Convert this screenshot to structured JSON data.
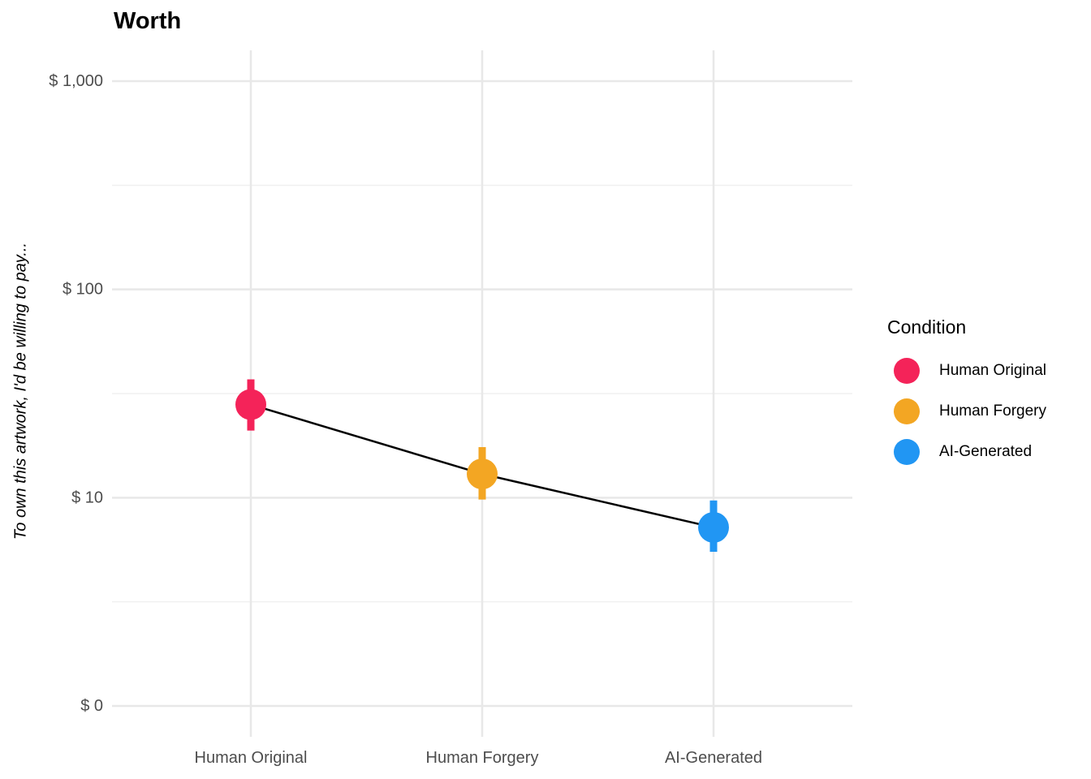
{
  "chart": {
    "title": "Worth",
    "y_axis_title": "To own this artwork, I'd be willing to pay...",
    "legend_title": "Condition"
  },
  "chart_data": {
    "type": "scatter",
    "subtype": "point estimates with vertical confidence intervals connected by a line",
    "title": "Worth",
    "xlabel": "",
    "ylabel": "To own this artwork, I'd be willing to pay...",
    "categories": [
      "Human Original",
      "Human Forgery",
      "AI-Generated"
    ],
    "y_scale": "log10 (pseudo-log: the '$ 0' tick sits one decade below $ 10)",
    "y_tick_labels": [
      "$ 0",
      "$ 10",
      "$ 100",
      "$ 1,000"
    ],
    "y_tick_values": [
      0,
      10,
      100,
      1000
    ],
    "grid": "horizontal major + minor gridlines, vertical major gridlines, no axis lines or ticks",
    "legend_position": "right",
    "legend_title": "Condition",
    "series": [
      {
        "name": "Human Original",
        "color": "#F42359",
        "mean": 28,
        "ci_low": 21,
        "ci_high": 37
      },
      {
        "name": "Human Forgery",
        "color": "#F3A623",
        "mean": 13,
        "ci_low": 9.8,
        "ci_high": 17.5
      },
      {
        "name": "AI-Generated",
        "color": "#2196F3",
        "mean": 7.2,
        "ci_low": 5.5,
        "ci_high": 9.7
      }
    ],
    "connecting_line_color": "#000000",
    "colors": {
      "axis_text": "#4D4D4D",
      "major_grid": "#E8E8E8",
      "minor_grid": "#F0F0F0"
    }
  }
}
